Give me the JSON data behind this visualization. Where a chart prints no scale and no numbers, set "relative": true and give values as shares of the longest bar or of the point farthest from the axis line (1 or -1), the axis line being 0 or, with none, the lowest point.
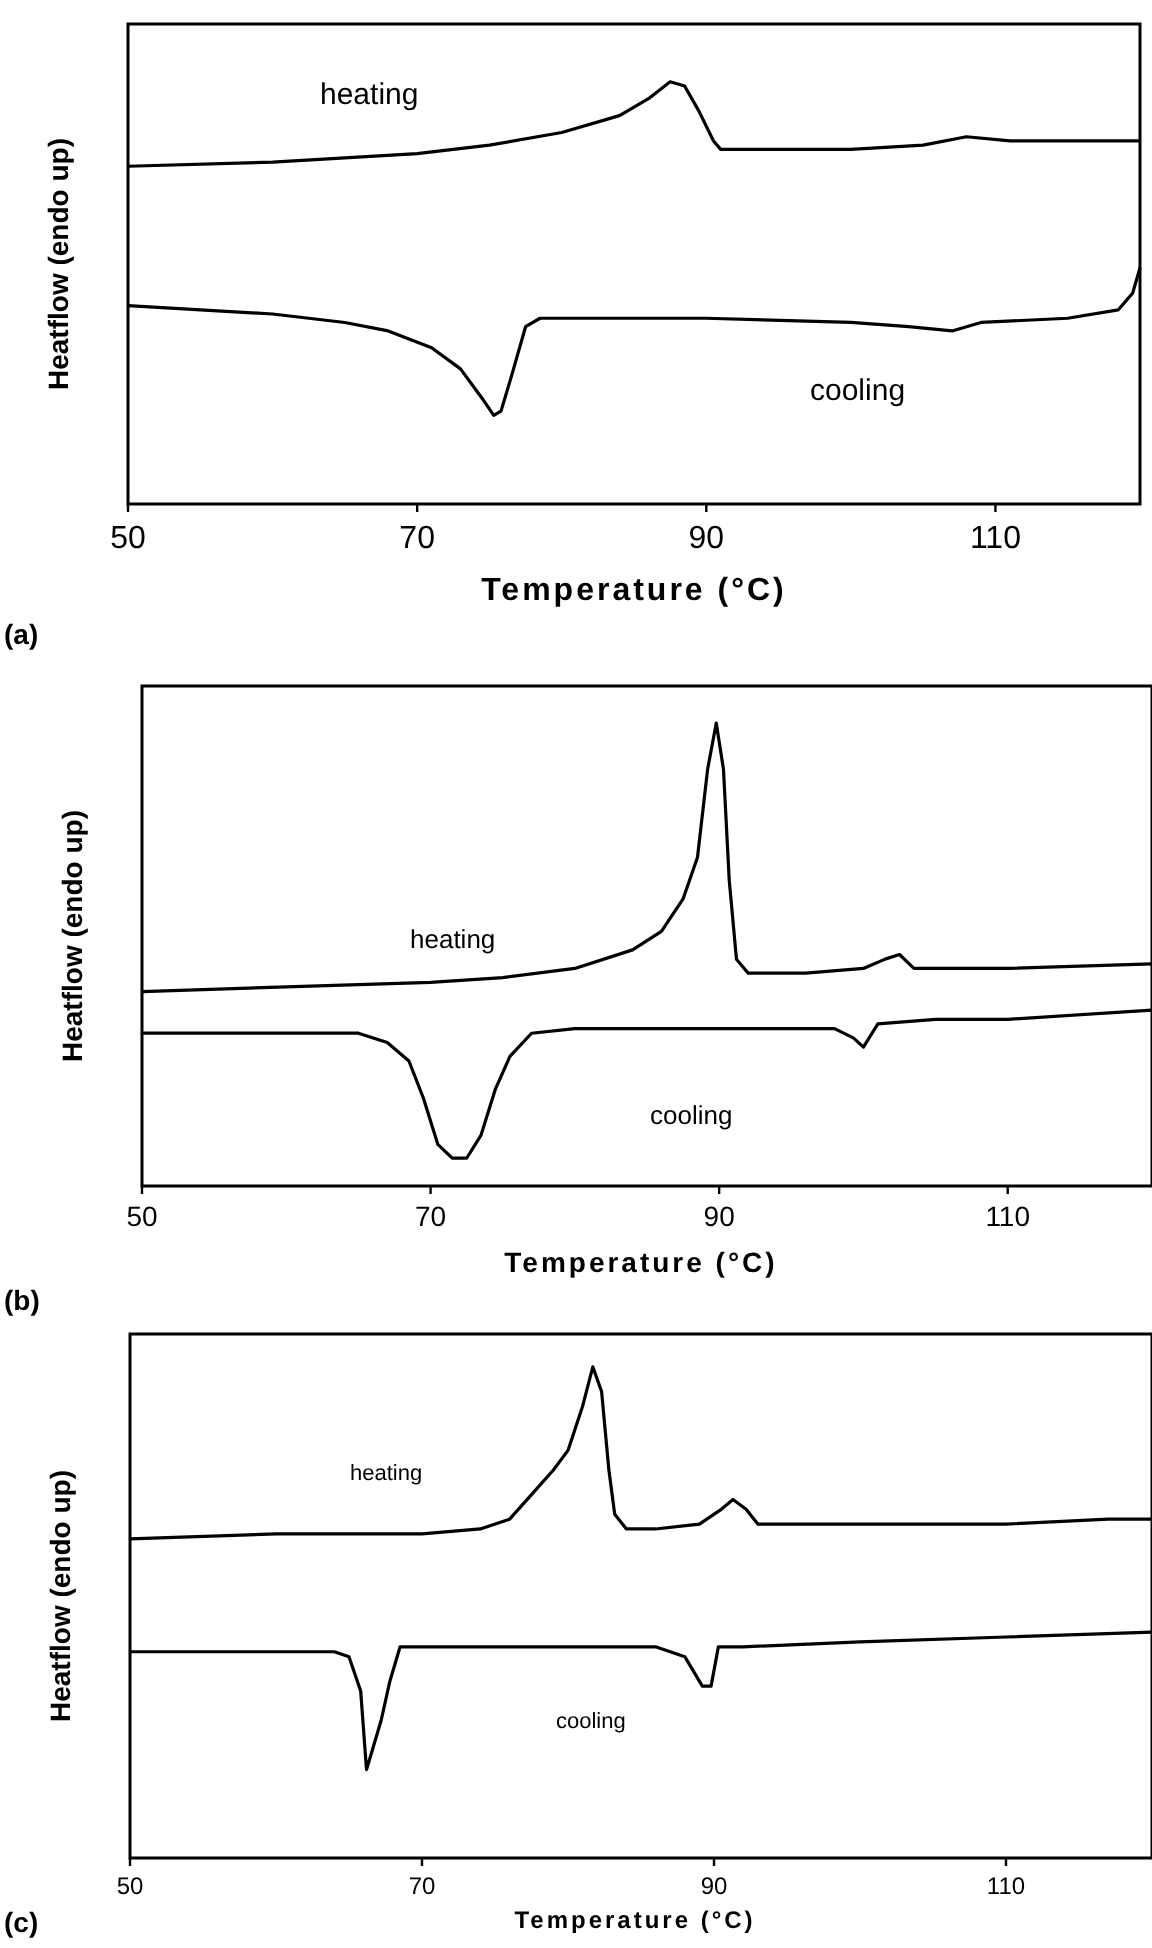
{
  "chart_data": [
    {
      "type": "line",
      "relative": true,
      "xlabel": "Temperature (°C)",
      "ylabel": "Heatflow (endo up)",
      "xlim": [
        50,
        120
      ],
      "xticks": [
        50,
        70,
        90,
        110
      ],
      "annotations": [
        "(a)"
      ],
      "grid": false,
      "marker": "none",
      "line_style": "solid",
      "series": [
        {
          "name": "heating",
          "color": "#000000",
          "x": [
            50,
            60,
            70,
            75,
            80,
            84,
            86,
            87.5,
            88.5,
            89.5,
            90.5,
            91,
            95,
            100,
            105,
            108,
            111,
            115,
            120
          ],
          "values": [
            0.8,
            0.81,
            0.83,
            0.85,
            0.88,
            0.92,
            0.96,
            1,
            0.99,
            0.93,
            0.86,
            0.84,
            0.84,
            0.84,
            0.85,
            0.87,
            0.86,
            0.86,
            0.86
          ]
        },
        {
          "name": "cooling",
          "color": "#000000",
          "x": [
            50,
            60,
            65,
            68,
            71,
            73,
            74.5,
            75.3,
            75.8,
            76.5,
            77.5,
            78.5,
            90,
            100,
            104,
            107,
            109,
            115,
            118.5,
            119.5,
            120
          ],
          "values": [
            0.47,
            0.45,
            0.43,
            0.41,
            0.37,
            0.32,
            0.25,
            0.21,
            0.22,
            0.3,
            0.42,
            0.44,
            0.44,
            0.43,
            0.42,
            0.41,
            0.43,
            0.44,
            0.46,
            0.5,
            0.56
          ]
        }
      ]
    },
    {
      "type": "line",
      "relative": true,
      "xlabel": "Temperature (°C)",
      "ylabel": "Heatflow (endo up)",
      "xlim": [
        50,
        120
      ],
      "xticks": [
        50,
        70,
        90,
        110
      ],
      "annotations": [
        "(b)"
      ],
      "grid": false,
      "marker": "none",
      "line_style": "solid",
      "series": [
        {
          "name": "heating",
          "color": "#000000",
          "x": [
            50,
            60,
            70,
            75,
            80,
            84,
            86,
            87.5,
            88.5,
            89.2,
            89.8,
            90.3,
            90.7,
            91.2,
            92,
            93,
            96,
            100,
            101.5,
            102.5,
            103.5,
            110,
            120
          ],
          "values": [
            0.42,
            0.43,
            0.44,
            0.45,
            0.47,
            0.51,
            0.55,
            0.62,
            0.71,
            0.9,
            1,
            0.9,
            0.66,
            0.49,
            0.46,
            0.46,
            0.46,
            0.47,
            0.49,
            0.5,
            0.47,
            0.47,
            0.48
          ]
        },
        {
          "name": "cooling",
          "color": "#000000",
          "x": [
            50,
            65,
            67,
            68.5,
            69.5,
            70.5,
            71.5,
            72.5,
            73.5,
            74.5,
            75.5,
            77,
            80,
            90,
            98,
            99.3,
            100,
            101,
            105,
            110,
            120
          ],
          "values": [
            0.33,
            0.33,
            0.31,
            0.27,
            0.19,
            0.09,
            0.06,
            0.06,
            0.11,
            0.21,
            0.28,
            0.33,
            0.34,
            0.34,
            0.34,
            0.32,
            0.3,
            0.35,
            0.36,
            0.36,
            0.38
          ]
        }
      ]
    },
    {
      "type": "line",
      "relative": true,
      "xlabel": "Temperature (°C)",
      "ylabel": "Heatflow (endo up)",
      "xlim": [
        50,
        120
      ],
      "xticks": [
        50,
        70,
        90,
        110
      ],
      "annotations": [
        "(c)"
      ],
      "grid": false,
      "marker": "none",
      "line_style": "solid",
      "series": [
        {
          "name": "heating",
          "color": "#000000",
          "x": [
            50,
            60,
            70,
            74,
            76,
            77.5,
            79,
            80,
            81,
            81.7,
            82.3,
            82.8,
            83.2,
            84,
            86,
            89,
            90.5,
            91.3,
            92.2,
            93,
            100,
            106,
            110,
            117,
            120
          ],
          "values": [
            0.65,
            0.66,
            0.66,
            0.67,
            0.69,
            0.74,
            0.79,
            0.83,
            0.92,
            1,
            0.95,
            0.79,
            0.7,
            0.67,
            0.67,
            0.68,
            0.71,
            0.73,
            0.71,
            0.68,
            0.68,
            0.68,
            0.68,
            0.69,
            0.69
          ]
        },
        {
          "name": "cooling",
          "color": "#000000",
          "x": [
            50,
            64,
            65,
            65.8,
            66.2,
            66.6,
            67.2,
            67.8,
            68.5,
            75,
            86,
            88,
            89.2,
            89.8,
            90.3,
            92,
            100,
            110,
            120
          ],
          "values": [
            0.42,
            0.42,
            0.41,
            0.34,
            0.18,
            0.22,
            0.28,
            0.36,
            0.43,
            0.43,
            0.43,
            0.41,
            0.35,
            0.35,
            0.43,
            0.43,
            0.44,
            0.45,
            0.46
          ]
        }
      ]
    }
  ]
}
